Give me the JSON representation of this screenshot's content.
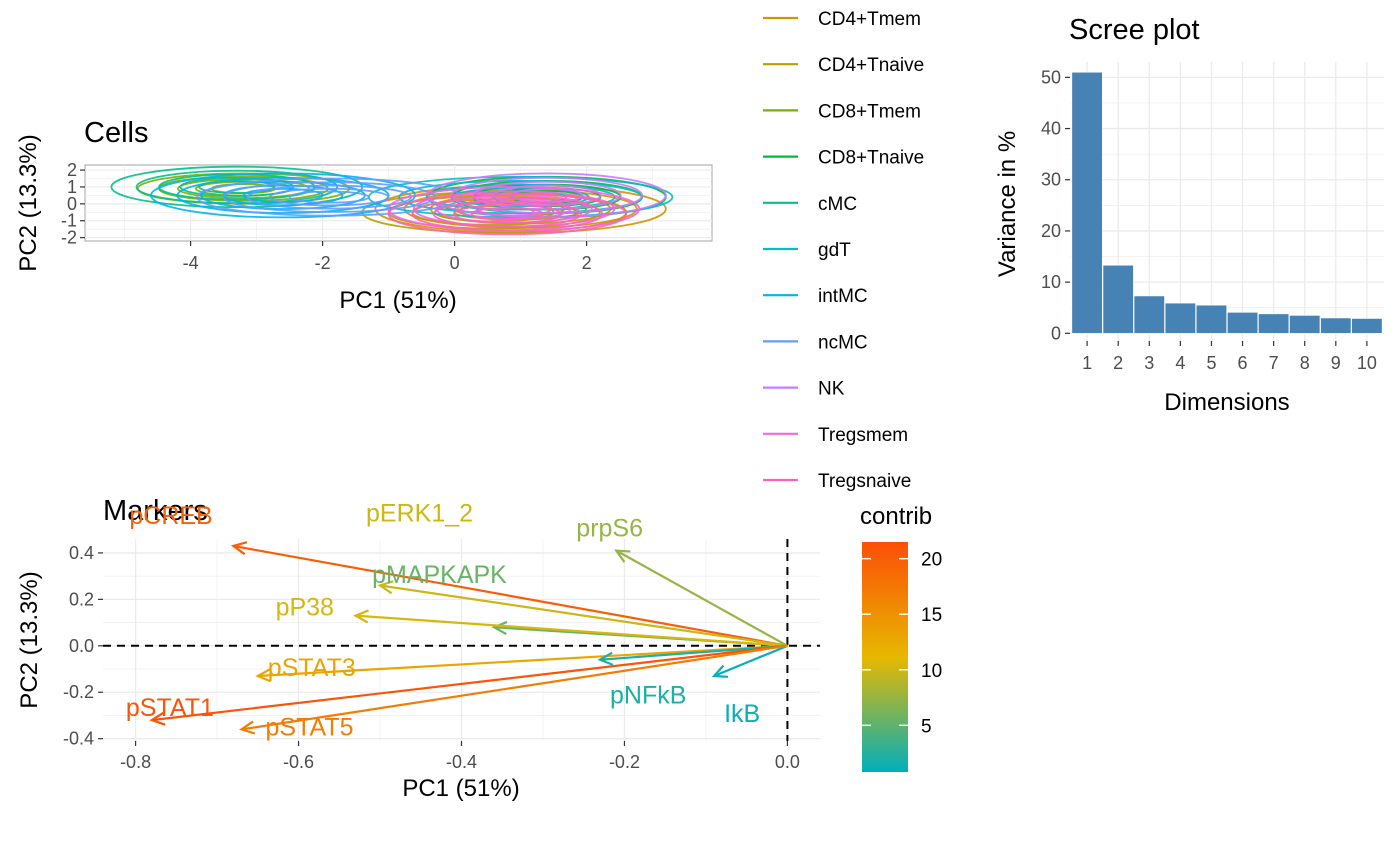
{
  "chart_data": [
    {
      "type": "contour",
      "title": "Cells",
      "xlabel": "PC1 (51%)",
      "ylabel": "PC2 (13.3%)",
      "xlim": [
        -5.6,
        3.9
      ],
      "ylim": [
        -2.2,
        2.3
      ],
      "x_ticks": [
        "-4",
        "-2",
        "0",
        "2"
      ],
      "y_ticks": [
        "-2",
        "-1",
        "0",
        "1",
        "2"
      ],
      "grid": true,
      "legend_position": "right",
      "legend": [
        {
          "name": "CD4+Tmem",
          "color": "#D39200"
        },
        {
          "name": "CD4+Tnaive",
          "color": "#B79F00"
        },
        {
          "name": "CD8+Tmem",
          "color": "#7CAE00"
        },
        {
          "name": "CD8+Tnaive",
          "color": "#00BA38"
        },
        {
          "name": "cMC",
          "color": "#00C08B"
        },
        {
          "name": "gdT",
          "color": "#00BFC4"
        },
        {
          "name": "intMC",
          "color": "#00B4F0"
        },
        {
          "name": "ncMC",
          "color": "#619CFF"
        },
        {
          "name": "NK",
          "color": "#C77CFF"
        },
        {
          "name": "Tregsmem",
          "color": "#F564E3"
        },
        {
          "name": "Tregsnaive",
          "color": "#FF64B0"
        }
      ],
      "groups": [
        {
          "name": "CD4+Tmem",
          "color": "#D39200",
          "cx": 1.0,
          "cy": -0.3,
          "rx": 2.2,
          "ry": 1.4
        },
        {
          "name": "CD4+Tnaive",
          "color": "#B79F00",
          "cx": 0.6,
          "cy": -0.5,
          "rx": 2.0,
          "ry": 1.2
        },
        {
          "name": "CD8+Tmem",
          "color": "#7CAE00",
          "cx": -3.2,
          "cy": 0.9,
          "rx": 1.6,
          "ry": 0.9
        },
        {
          "name": "CD8+Tnaive",
          "color": "#00BA38",
          "cx": 1.4,
          "cy": 0.4,
          "rx": 1.8,
          "ry": 1.2
        },
        {
          "name": "cMC",
          "color": "#00C08B",
          "cx": -3.3,
          "cy": 1.0,
          "rx": 1.9,
          "ry": 1.2
        },
        {
          "name": "gdT",
          "color": "#00BFC4",
          "cx": 1.0,
          "cy": 0.4,
          "rx": 2.3,
          "ry": 1.2
        },
        {
          "name": "intMC",
          "color": "#00B4F0",
          "cx": -2.6,
          "cy": 0.5,
          "rx": 2.0,
          "ry": 1.3
        },
        {
          "name": "ncMC",
          "color": "#619CFF",
          "cx": -1.9,
          "cy": 0.4,
          "rx": 2.0,
          "ry": 1.1
        },
        {
          "name": "NK",
          "color": "#C77CFF",
          "cx": 1.4,
          "cy": 0.5,
          "rx": 1.8,
          "ry": 1.3
        },
        {
          "name": "Tregsmem",
          "color": "#F564E3",
          "cx": 0.9,
          "cy": -0.3,
          "rx": 1.9,
          "ry": 1.3
        },
        {
          "name": "Tregsnaive",
          "color": "#FF64B0",
          "cx": 0.8,
          "cy": -0.6,
          "rx": 1.8,
          "ry": 1.2
        }
      ]
    },
    {
      "type": "bar",
      "title": "Scree plot",
      "xlabel": "Dimensions",
      "ylabel": "Variance in %",
      "categories": [
        "1",
        "2",
        "3",
        "4",
        "5",
        "6",
        "7",
        "8",
        "9",
        "10"
      ],
      "values": [
        51.0,
        13.3,
        7.3,
        5.9,
        5.5,
        4.1,
        3.8,
        3.5,
        3.0,
        2.9
      ],
      "ylim": [
        -1.5,
        53
      ],
      "y_ticks": [
        "0",
        "10",
        "20",
        "30",
        "40",
        "50"
      ],
      "bar_color": "#4682B4",
      "grid": true
    },
    {
      "type": "biplot-arrows",
      "title": "Markers",
      "xlabel": "PC1 (51%)",
      "ylabel": "PC2 (13.3%)",
      "xlim": [
        -0.84,
        0.04
      ],
      "ylim": [
        -0.41,
        0.46
      ],
      "x_ticks": [
        "-0.8",
        "-0.6",
        "-0.4",
        "-0.2",
        "0.0"
      ],
      "y_ticks": [
        "-0.4",
        "-0.2",
        "0.0",
        "0.2",
        "0.4"
      ],
      "grid": true,
      "color_legend": {
        "title": "contrib",
        "ticks": [
          "5",
          "10",
          "15",
          "20"
        ],
        "min": 0.8,
        "max": 21.5,
        "colors": [
          "#00AFBB",
          "#E7B800",
          "#FC4E07"
        ]
      },
      "arrows": [
        {
          "name": "pCREB",
          "x": -0.68,
          "y": 0.43,
          "contrib": 20.0
        },
        {
          "name": "pERK1_2",
          "x": -0.5,
          "y": 0.26,
          "contrib": 10.0
        },
        {
          "name": "prpS6",
          "x": -0.21,
          "y": 0.41,
          "contrib": 7.5
        },
        {
          "name": "pMAPKAPK",
          "x": -0.36,
          "y": 0.08,
          "contrib": 5.5
        },
        {
          "name": "pP38",
          "x": -0.53,
          "y": 0.13,
          "contrib": 10.5
        },
        {
          "name": "pSTAT3",
          "x": -0.65,
          "y": -0.13,
          "contrib": 13.0
        },
        {
          "name": "pNFkB",
          "x": -0.23,
          "y": -0.06,
          "contrib": 2.0
        },
        {
          "name": "IkB",
          "x": -0.09,
          "y": -0.13,
          "contrib": 1.2
        },
        {
          "name": "pSTAT1",
          "x": -0.78,
          "y": -0.32,
          "contrib": 21.0
        },
        {
          "name": "pSTAT5",
          "x": -0.67,
          "y": -0.36,
          "contrib": 17.0
        }
      ]
    }
  ]
}
